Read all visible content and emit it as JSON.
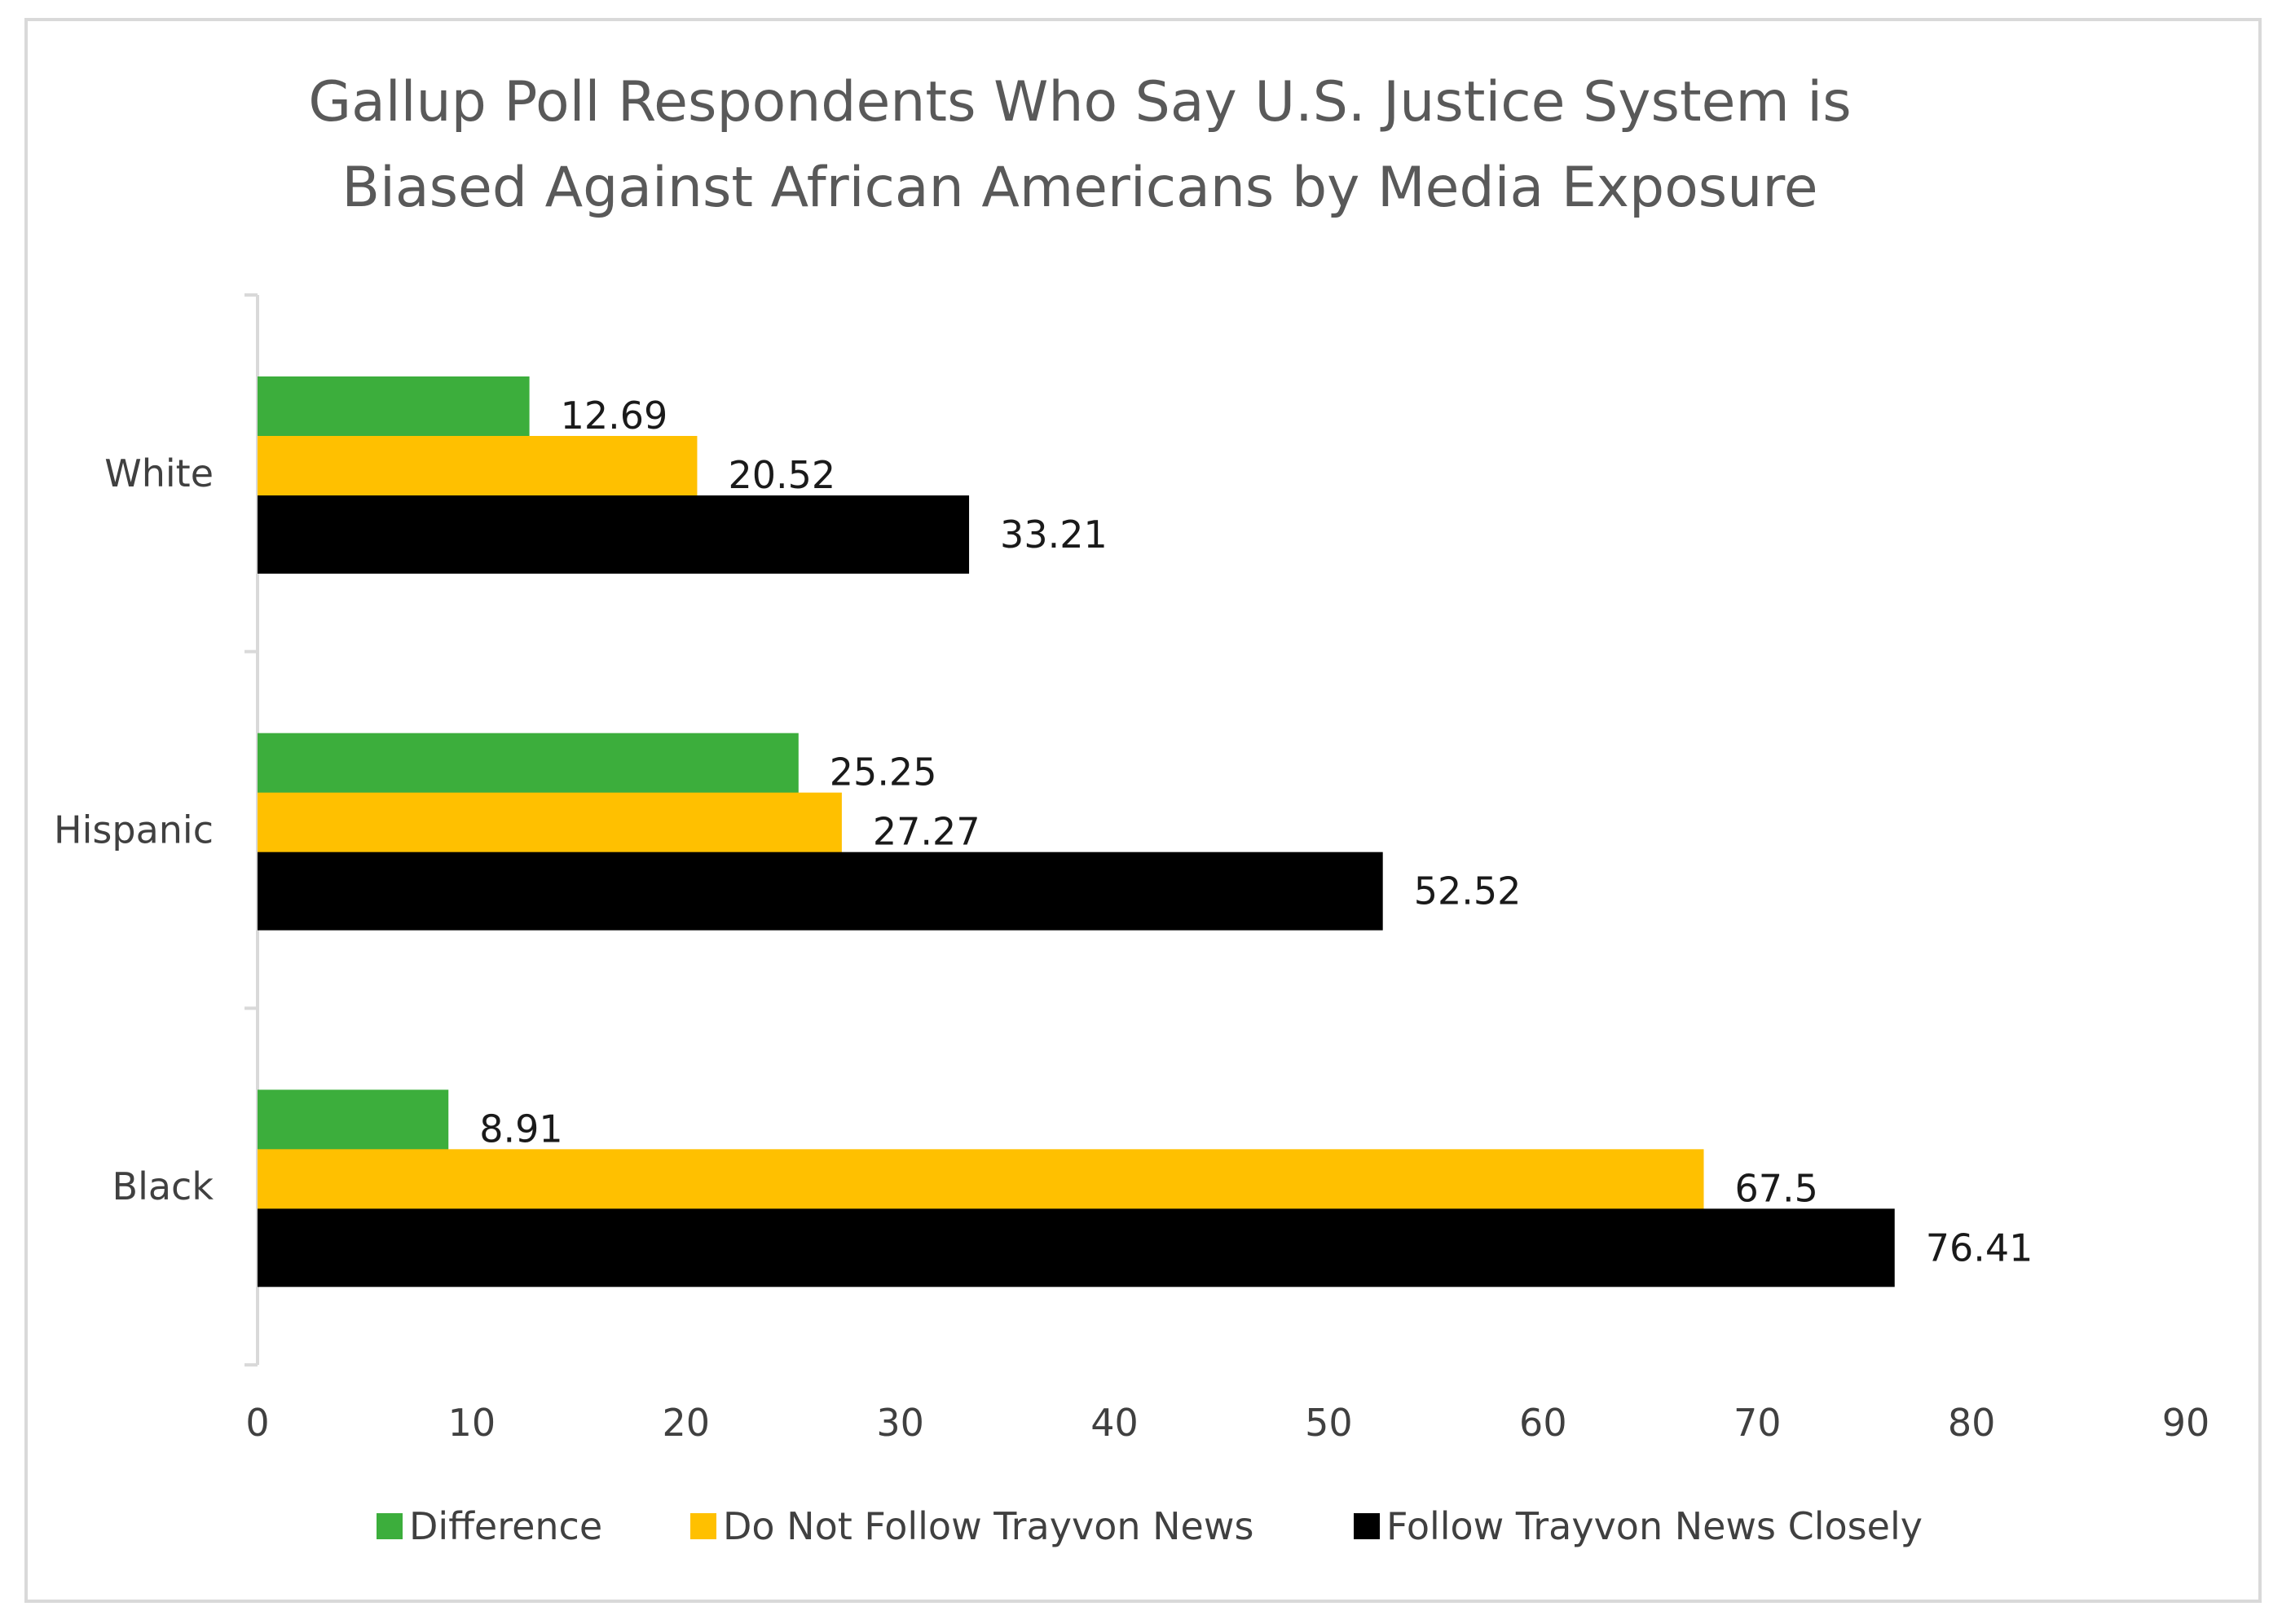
{
  "chart_data": {
    "type": "bar",
    "orientation": "horizontal",
    "title": "Gallup Poll Respondents Who Say U.S. Justice System is Biased Against African Americans by Media Exposure",
    "title_lines": [
      "Gallup Poll Respondents Who Say U.S. Justice System is",
      "Biased Against African Americans by Media Exposure"
    ],
    "categories": [
      "White",
      "Hispanic",
      "Black"
    ],
    "series": [
      {
        "name": "Difference",
        "color": "#3cae3c",
        "values": [
          12.69,
          25.25,
          8.91
        ],
        "labels": [
          "12.69",
          "25.25",
          "8.91"
        ]
      },
      {
        "name": "Do Not Follow Trayvon News",
        "color": "#ffc000",
        "values": [
          20.52,
          27.27,
          67.5
        ],
        "labels": [
          "20.52",
          "27.27",
          "67.5"
        ]
      },
      {
        "name": "Follow Trayvon News Closely",
        "color": "#000000",
        "values": [
          33.21,
          52.52,
          76.41
        ],
        "labels": [
          "33.21",
          "52.52",
          "76.41"
        ]
      }
    ],
    "xlim": [
      0,
      90
    ],
    "xticks": [
      0,
      10,
      20,
      30,
      40,
      50,
      60,
      70,
      80,
      90
    ],
    "xlabel": "",
    "ylabel": "",
    "grid": false,
    "legend_position": "bottom"
  }
}
